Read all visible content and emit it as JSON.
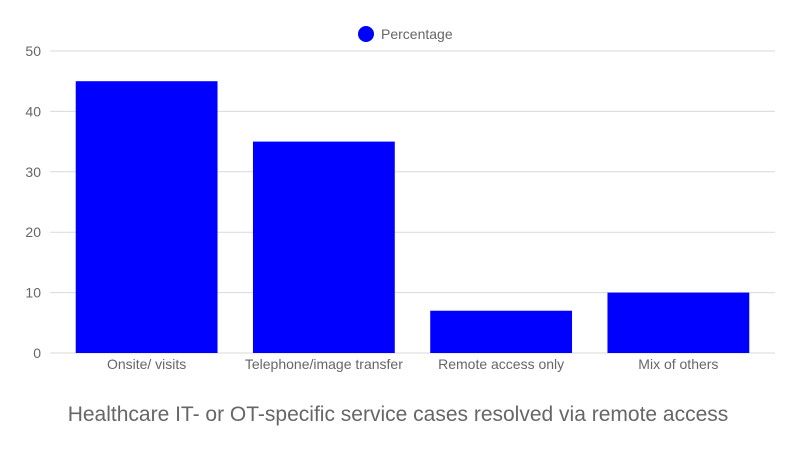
{
  "chart_data": {
    "type": "bar",
    "title": "Healthcare IT- or OT-specific service cases resolved via remote access",
    "xlabel": "",
    "ylabel": "",
    "categories": [
      "Onsite/ visits",
      "Telephone/image transfer",
      "Remote access only",
      "Mix of others"
    ],
    "series": [
      {
        "name": "Percentage",
        "values": [
          45,
          35,
          7,
          10
        ],
        "color": "#0000ff"
      }
    ],
    "ylim": [
      0,
      50
    ],
    "yticks": [
      0,
      10,
      20,
      30,
      40,
      50
    ],
    "grid": true,
    "legend": "top-center"
  }
}
